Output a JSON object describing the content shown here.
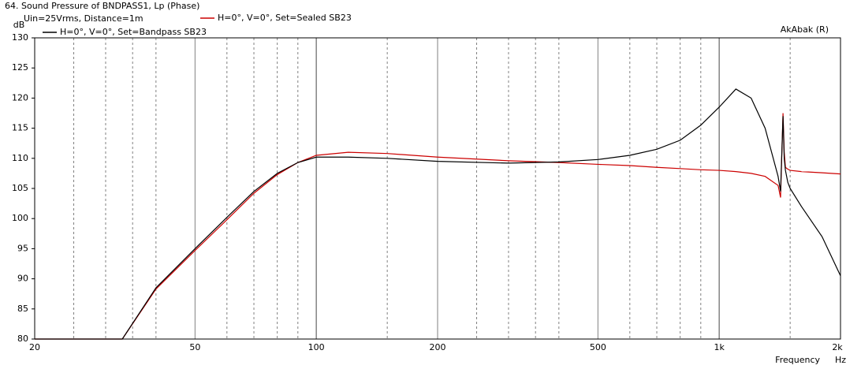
{
  "chart_data": {
    "type": "line",
    "title": "64. Sound Pressure of BNDPASS1, Lp (Phase)",
    "subtitle": "Uin=25Vrms, Distance=1m",
    "y_label": "dB",
    "x_label": "Frequency",
    "x_unit": "Hz",
    "watermark": "AkAbak (R)",
    "log_x": true,
    "xlim": [
      20,
      2000
    ],
    "ylim": [
      80,
      130
    ],
    "xticks": [
      20,
      50,
      100,
      200,
      500,
      {
        "value": 1000,
        "label": "1k"
      },
      {
        "value": 2000,
        "label": "2k"
      }
    ],
    "xgrid": [
      25,
      30,
      35,
      40,
      60,
      70,
      80,
      90,
      100,
      150,
      250,
      300,
      350,
      400,
      600,
      700,
      800,
      900,
      1000,
      1500
    ],
    "yticks": [
      80,
      85,
      90,
      95,
      100,
      105,
      110,
      115,
      120,
      125,
      130
    ],
    "x": [
      20,
      33,
      40,
      50,
      60,
      70,
      80,
      90,
      100,
      120,
      150,
      200,
      300,
      400,
      500,
      600,
      700,
      800,
      900,
      1000,
      1100,
      1200,
      1300,
      1400,
      1420,
      1440,
      1450,
      1460,
      1480,
      1500,
      1600,
      1800,
      2000
    ],
    "series": [
      {
        "name": "H=0°, V=0°, Set=Sealed SB23",
        "color": "#cc0000",
        "values": [
          80,
          80,
          88.3,
          94.7,
          99.8,
          104.2,
          107.3,
          109.3,
          110.5,
          111,
          110.8,
          110.2,
          109.6,
          109.3,
          109,
          108.8,
          108.5,
          108.3,
          108.1,
          108,
          107.8,
          107.5,
          107,
          105.5,
          103.5,
          117.5,
          111,
          108.5,
          108.2,
          108,
          107.8,
          107.6,
          107.4
        ]
      },
      {
        "name": "H=0°, V=0°, Set=Bandpass SB23",
        "color": "#000000",
        "values": [
          80,
          80,
          88.5,
          95,
          100.2,
          104.5,
          107.5,
          109.3,
          110.2,
          110.2,
          110,
          109.5,
          109.2,
          109.4,
          109.8,
          110.5,
          111.5,
          113,
          115.5,
          118.5,
          121.5,
          120,
          115,
          107,
          104.5,
          117,
          110,
          108,
          106,
          105,
          102,
          97,
          90.5
        ]
      }
    ]
  }
}
